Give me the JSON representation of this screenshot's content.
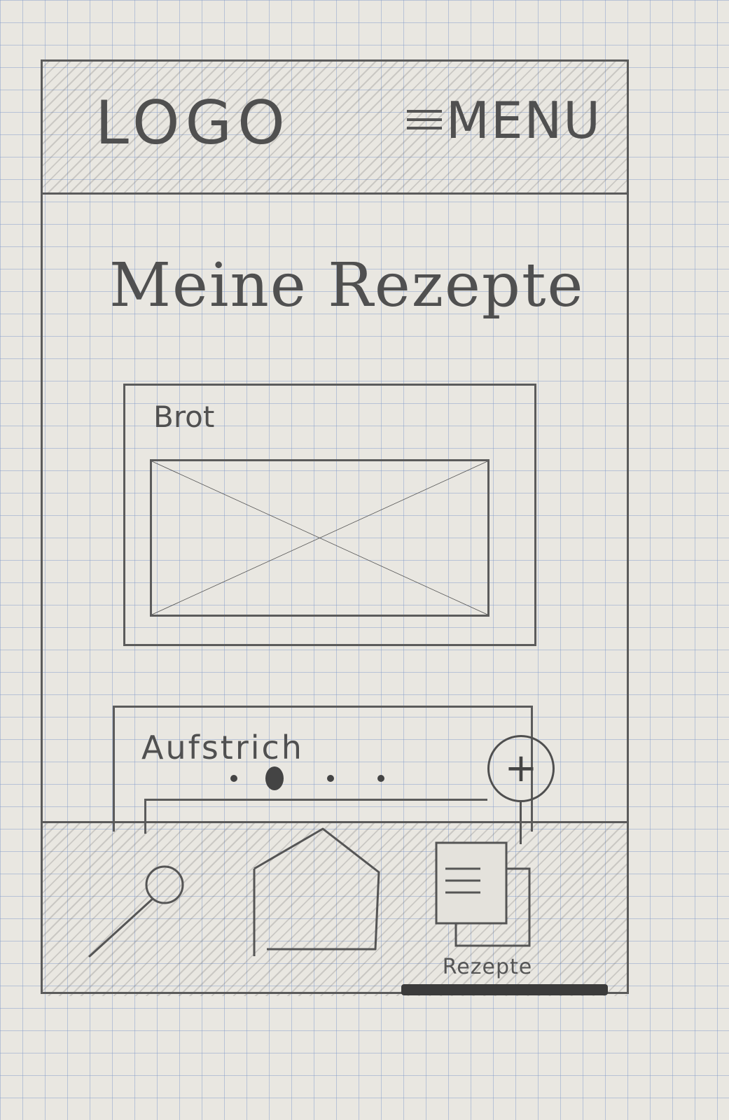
{
  "header": {
    "logo": "LOGO",
    "menu_icon": "hamburger-icon",
    "menu_label": "MENU"
  },
  "main": {
    "title": "Meine Rezepte",
    "cards": [
      {
        "title": "Brot",
        "image": "image-placeholder-icon"
      },
      {
        "title": "Aufstrich",
        "image": "image-placeholder-icon"
      }
    ],
    "pagination": {
      "count": 4,
      "active_index": 1
    },
    "add_button": {
      "icon": "plus-icon",
      "label": "+"
    }
  },
  "bottom_nav": {
    "items": [
      {
        "icon": "search-icon"
      },
      {
        "icon": "home-icon"
      },
      {
        "icon": "recipe-book-icon",
        "label": "Rezepte",
        "active": true
      }
    ]
  },
  "colors": {
    "pencil": "#4a4a4a",
    "paper": "#e9e7e1",
    "grid": "#7d96c8"
  }
}
